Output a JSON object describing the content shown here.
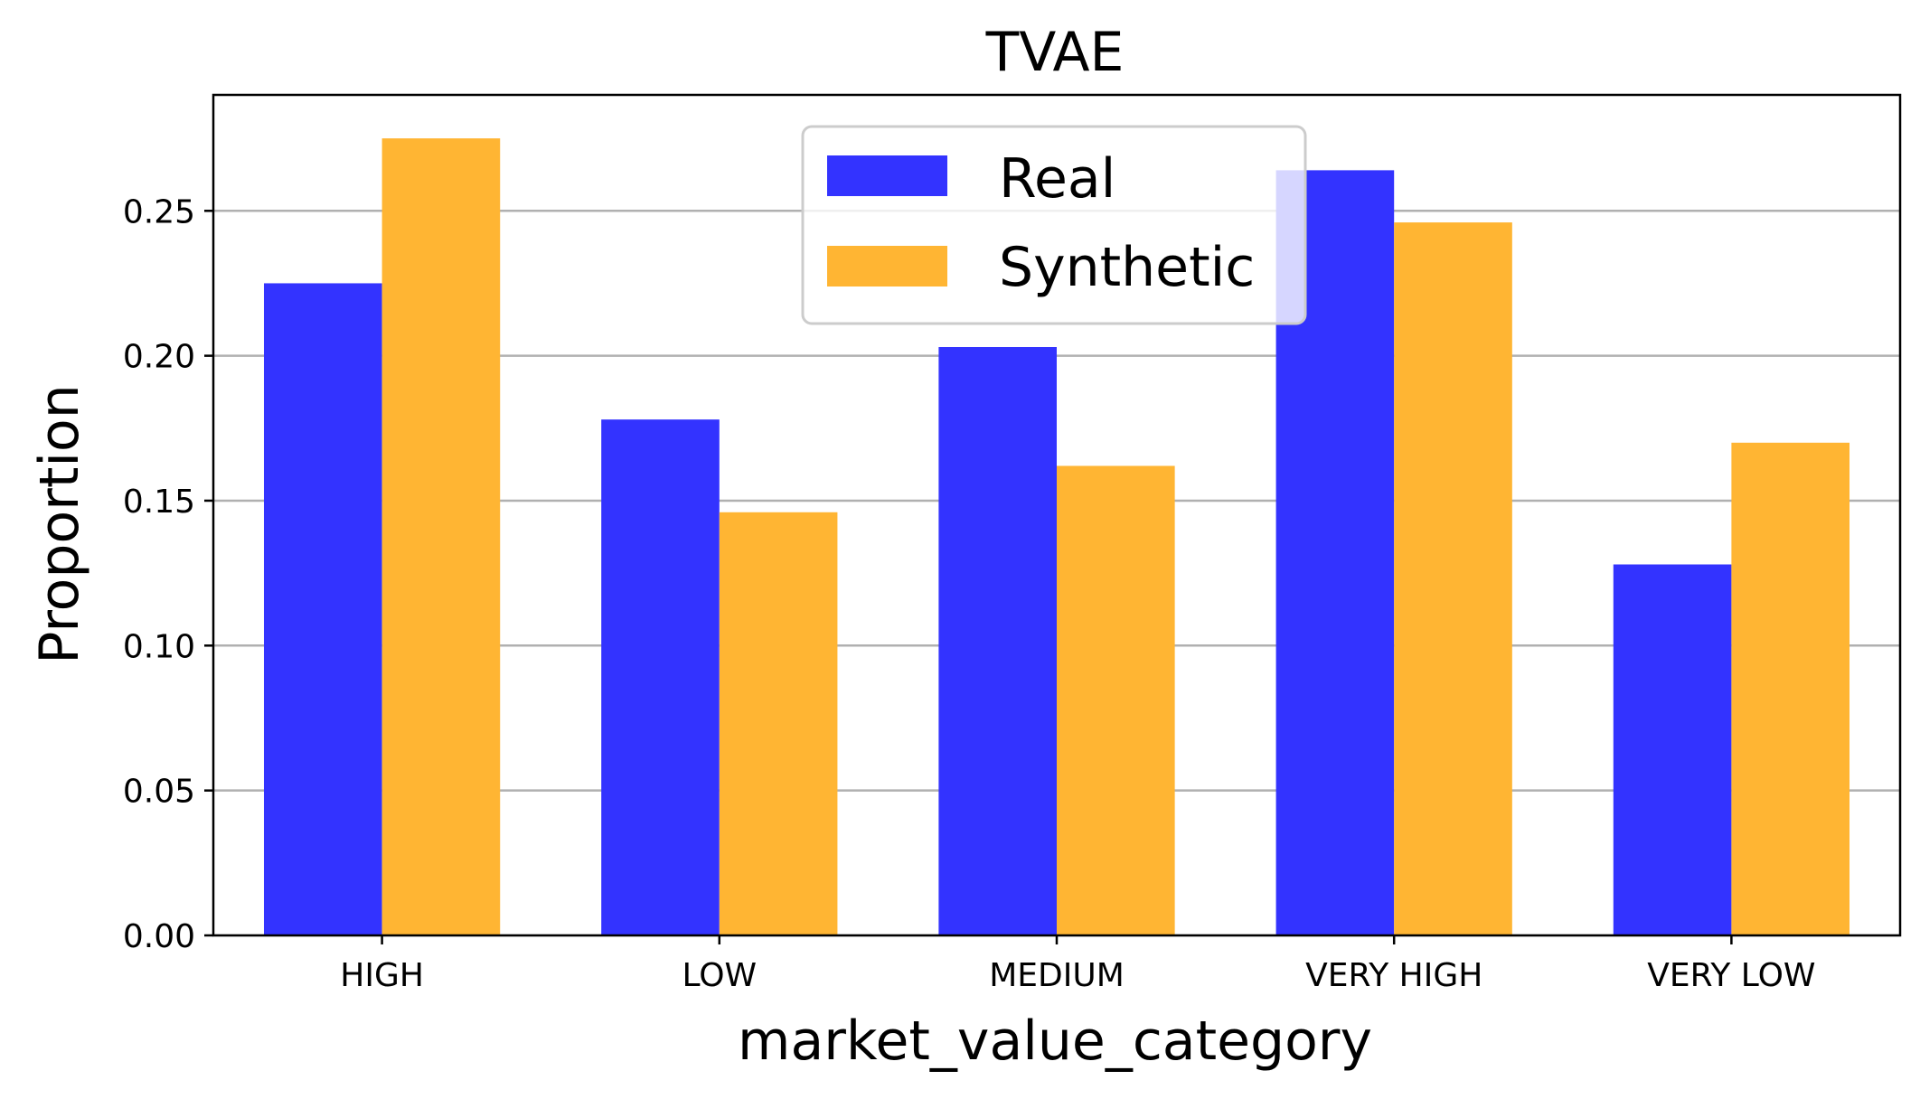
{
  "chart_data": {
    "type": "bar",
    "title": "TVAE",
    "xlabel": "market_value_category",
    "ylabel": "Proportion",
    "categories": [
      "HIGH",
      "LOW",
      "MEDIUM",
      "VERY HIGH",
      "VERY LOW"
    ],
    "series": [
      {
        "name": "Real",
        "color": "#3333ff",
        "values": [
          0.225,
          0.178,
          0.203,
          0.264,
          0.128
        ]
      },
      {
        "name": "Synthetic",
        "color": "#ffb533",
        "values": [
          0.275,
          0.146,
          0.162,
          0.246,
          0.17
        ]
      }
    ],
    "ylim": [
      0,
      0.29
    ],
    "yticks": [
      "0.00",
      "0.05",
      "0.10",
      "0.15",
      "0.20",
      "0.25"
    ],
    "grid": "y",
    "legend_position": "upper center"
  }
}
